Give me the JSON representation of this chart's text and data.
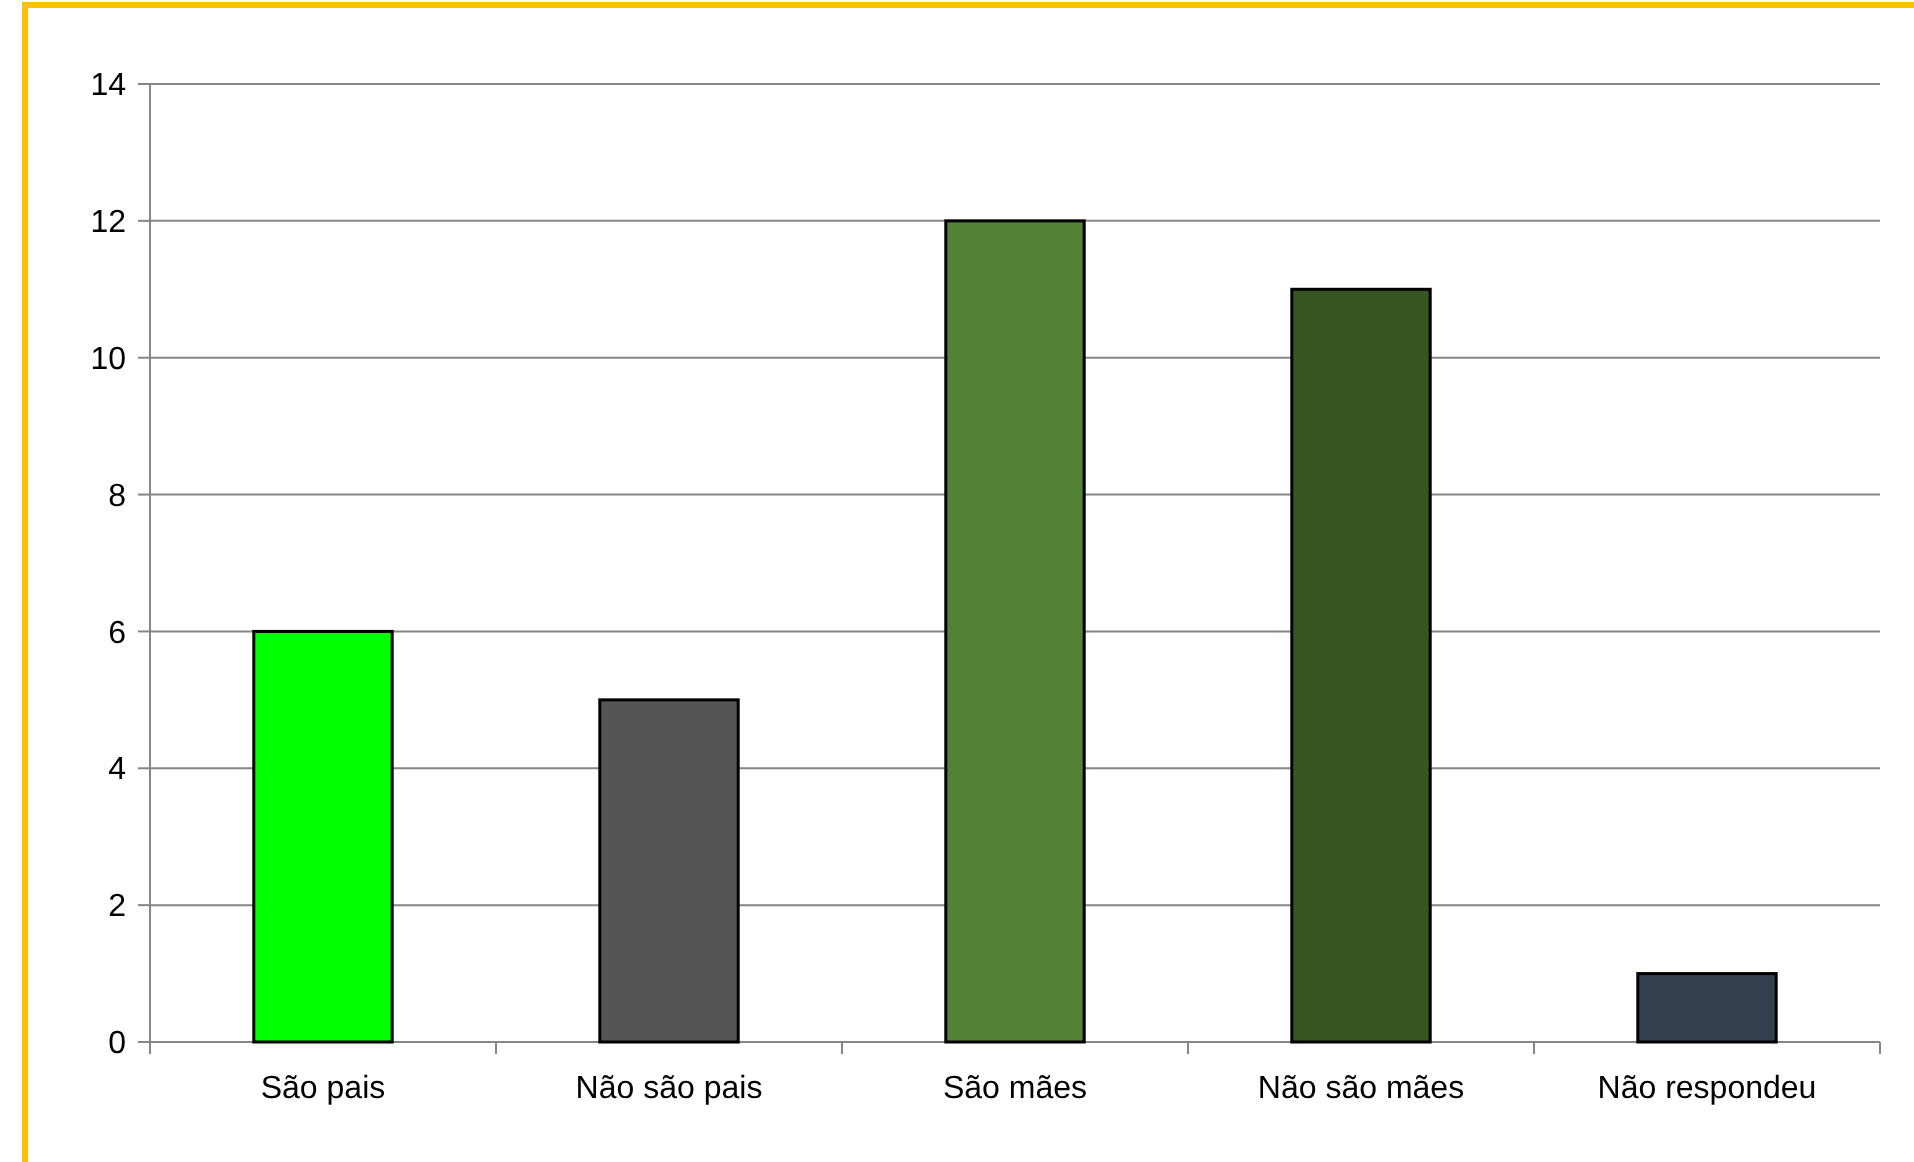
{
  "chart_data": {
    "type": "bar",
    "categories": [
      "São pais",
      "Não são pais",
      "São mães",
      "Não são mães",
      "Não respondeu"
    ],
    "values": [
      6,
      5,
      12,
      11,
      1
    ],
    "colors": [
      "#00ff00",
      "#555555",
      "#538135",
      "#375623",
      "#323f4f"
    ],
    "ylim": [
      0,
      14
    ],
    "yticks": [
      0,
      2,
      4,
      6,
      8,
      10,
      12,
      14
    ],
    "grid": "y"
  }
}
